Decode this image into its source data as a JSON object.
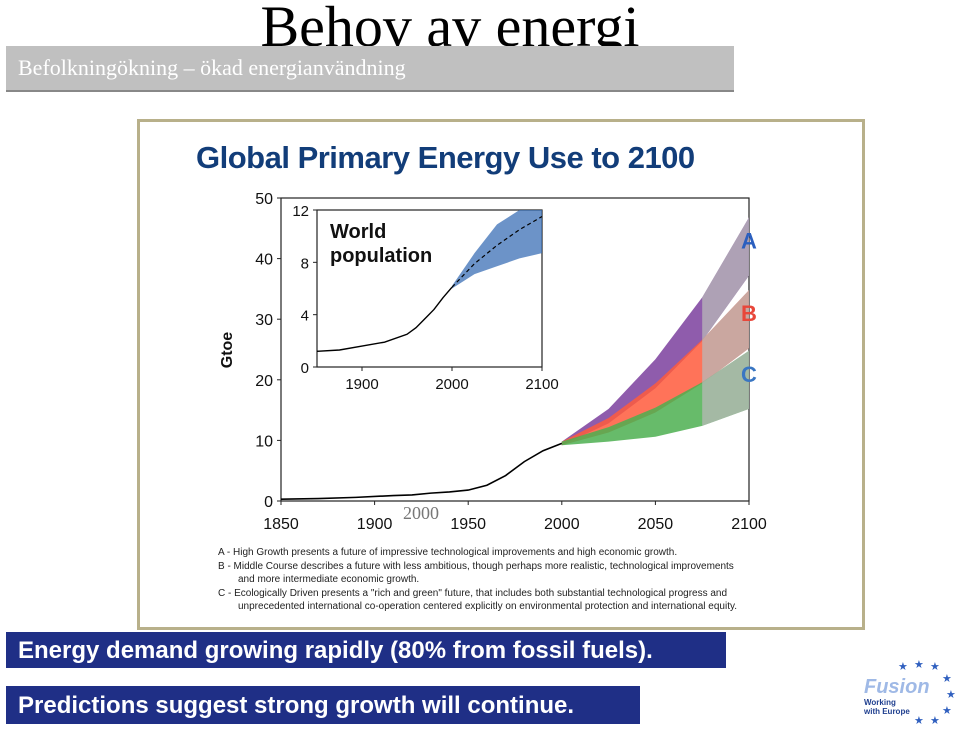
{
  "slide": {
    "title": "Behov av energi",
    "subtitle": "Befolkningökning – ökad energianvändning",
    "bullet1": "Energy demand growing rapidly (80% from fossil fuels).",
    "bullet2": "Predictions suggest strong growth will continue.",
    "annotation": "2000"
  },
  "logo": {
    "word": "Fusion",
    "line1": "Working",
    "line2": "with Europe"
  },
  "colors": {
    "title_blue": "#123d79",
    "bar_blue": "#1f2f86",
    "series_A": "#7b3f9e",
    "series_B": "#ff5a3c",
    "series_C": "#4caf50",
    "uncertainty_gray": "#b8b8b8",
    "inset_band": "#3b6fb5"
  },
  "chart_data": [
    {
      "type": "line",
      "title": "Global Primary Energy Use to 2100",
      "ylabel": "Gtoe",
      "xlabel": "",
      "xlim": [
        1850,
        2100
      ],
      "ylim": [
        0,
        50
      ],
      "xticks": [
        "1850",
        "1900",
        "1950",
        "2000",
        "2050",
        "2100"
      ],
      "yticks": [
        "0",
        "10",
        "20",
        "30",
        "40",
        "50"
      ],
      "history": {
        "x": [
          1850,
          1870,
          1890,
          1910,
          1920,
          1930,
          1940,
          1950,
          1960,
          1970,
          1980,
          1990,
          2000
        ],
        "y": [
          0.3,
          0.4,
          0.6,
          0.9,
          1.0,
          1.3,
          1.5,
          1.8,
          2.6,
          4.2,
          6.5,
          8.3,
          9.5
        ]
      },
      "series": [
        {
          "name": "A",
          "x": [
            2000,
            2025,
            2050,
            2075,
            2100
          ],
          "y": [
            9.5,
            14,
            21,
            30,
            42
          ]
        },
        {
          "name": "B",
          "x": [
            2000,
            2025,
            2050,
            2075,
            2100
          ],
          "y": [
            9.5,
            12.5,
            17,
            23,
            30
          ]
        },
        {
          "name": "C",
          "x": [
            2000,
            2025,
            2050,
            2075,
            2100
          ],
          "y": [
            9.5,
            11,
            13,
            16,
            20
          ]
        }
      ],
      "notes": [
        "A - High Growth presents a future of impressive technological improvements and high economic growth.",
        "B - Middle Course describes a future with less ambitious, though perhaps more realistic, technological improvements",
        "and more intermediate economic growth.",
        "C - Ecologically Driven presents a \"rich and green\" future, that includes both substantial technological progress and",
        "unprecedented international co-operation centered explicitly on environmental protection and international equity."
      ]
    },
    {
      "type": "line",
      "title": "World population",
      "xlim": [
        1850,
        2100
      ],
      "ylim": [
        0,
        12
      ],
      "xticks": [
        "1900",
        "2000",
        "2100"
      ],
      "yticks": [
        "0",
        "4",
        "8",
        "12"
      ],
      "history": {
        "x": [
          1850,
          1875,
          1900,
          1925,
          1950,
          1960,
          1970,
          1980,
          1990,
          2000
        ],
        "y": [
          1.2,
          1.3,
          1.6,
          1.9,
          2.5,
          3.0,
          3.7,
          4.4,
          5.3,
          6.1
        ]
      },
      "projection": {
        "x": [
          2000,
          2025,
          2050,
          2075,
          2100
        ],
        "y": [
          6.1,
          7.9,
          9.3,
          10.5,
          11.5
        ]
      }
    }
  ]
}
